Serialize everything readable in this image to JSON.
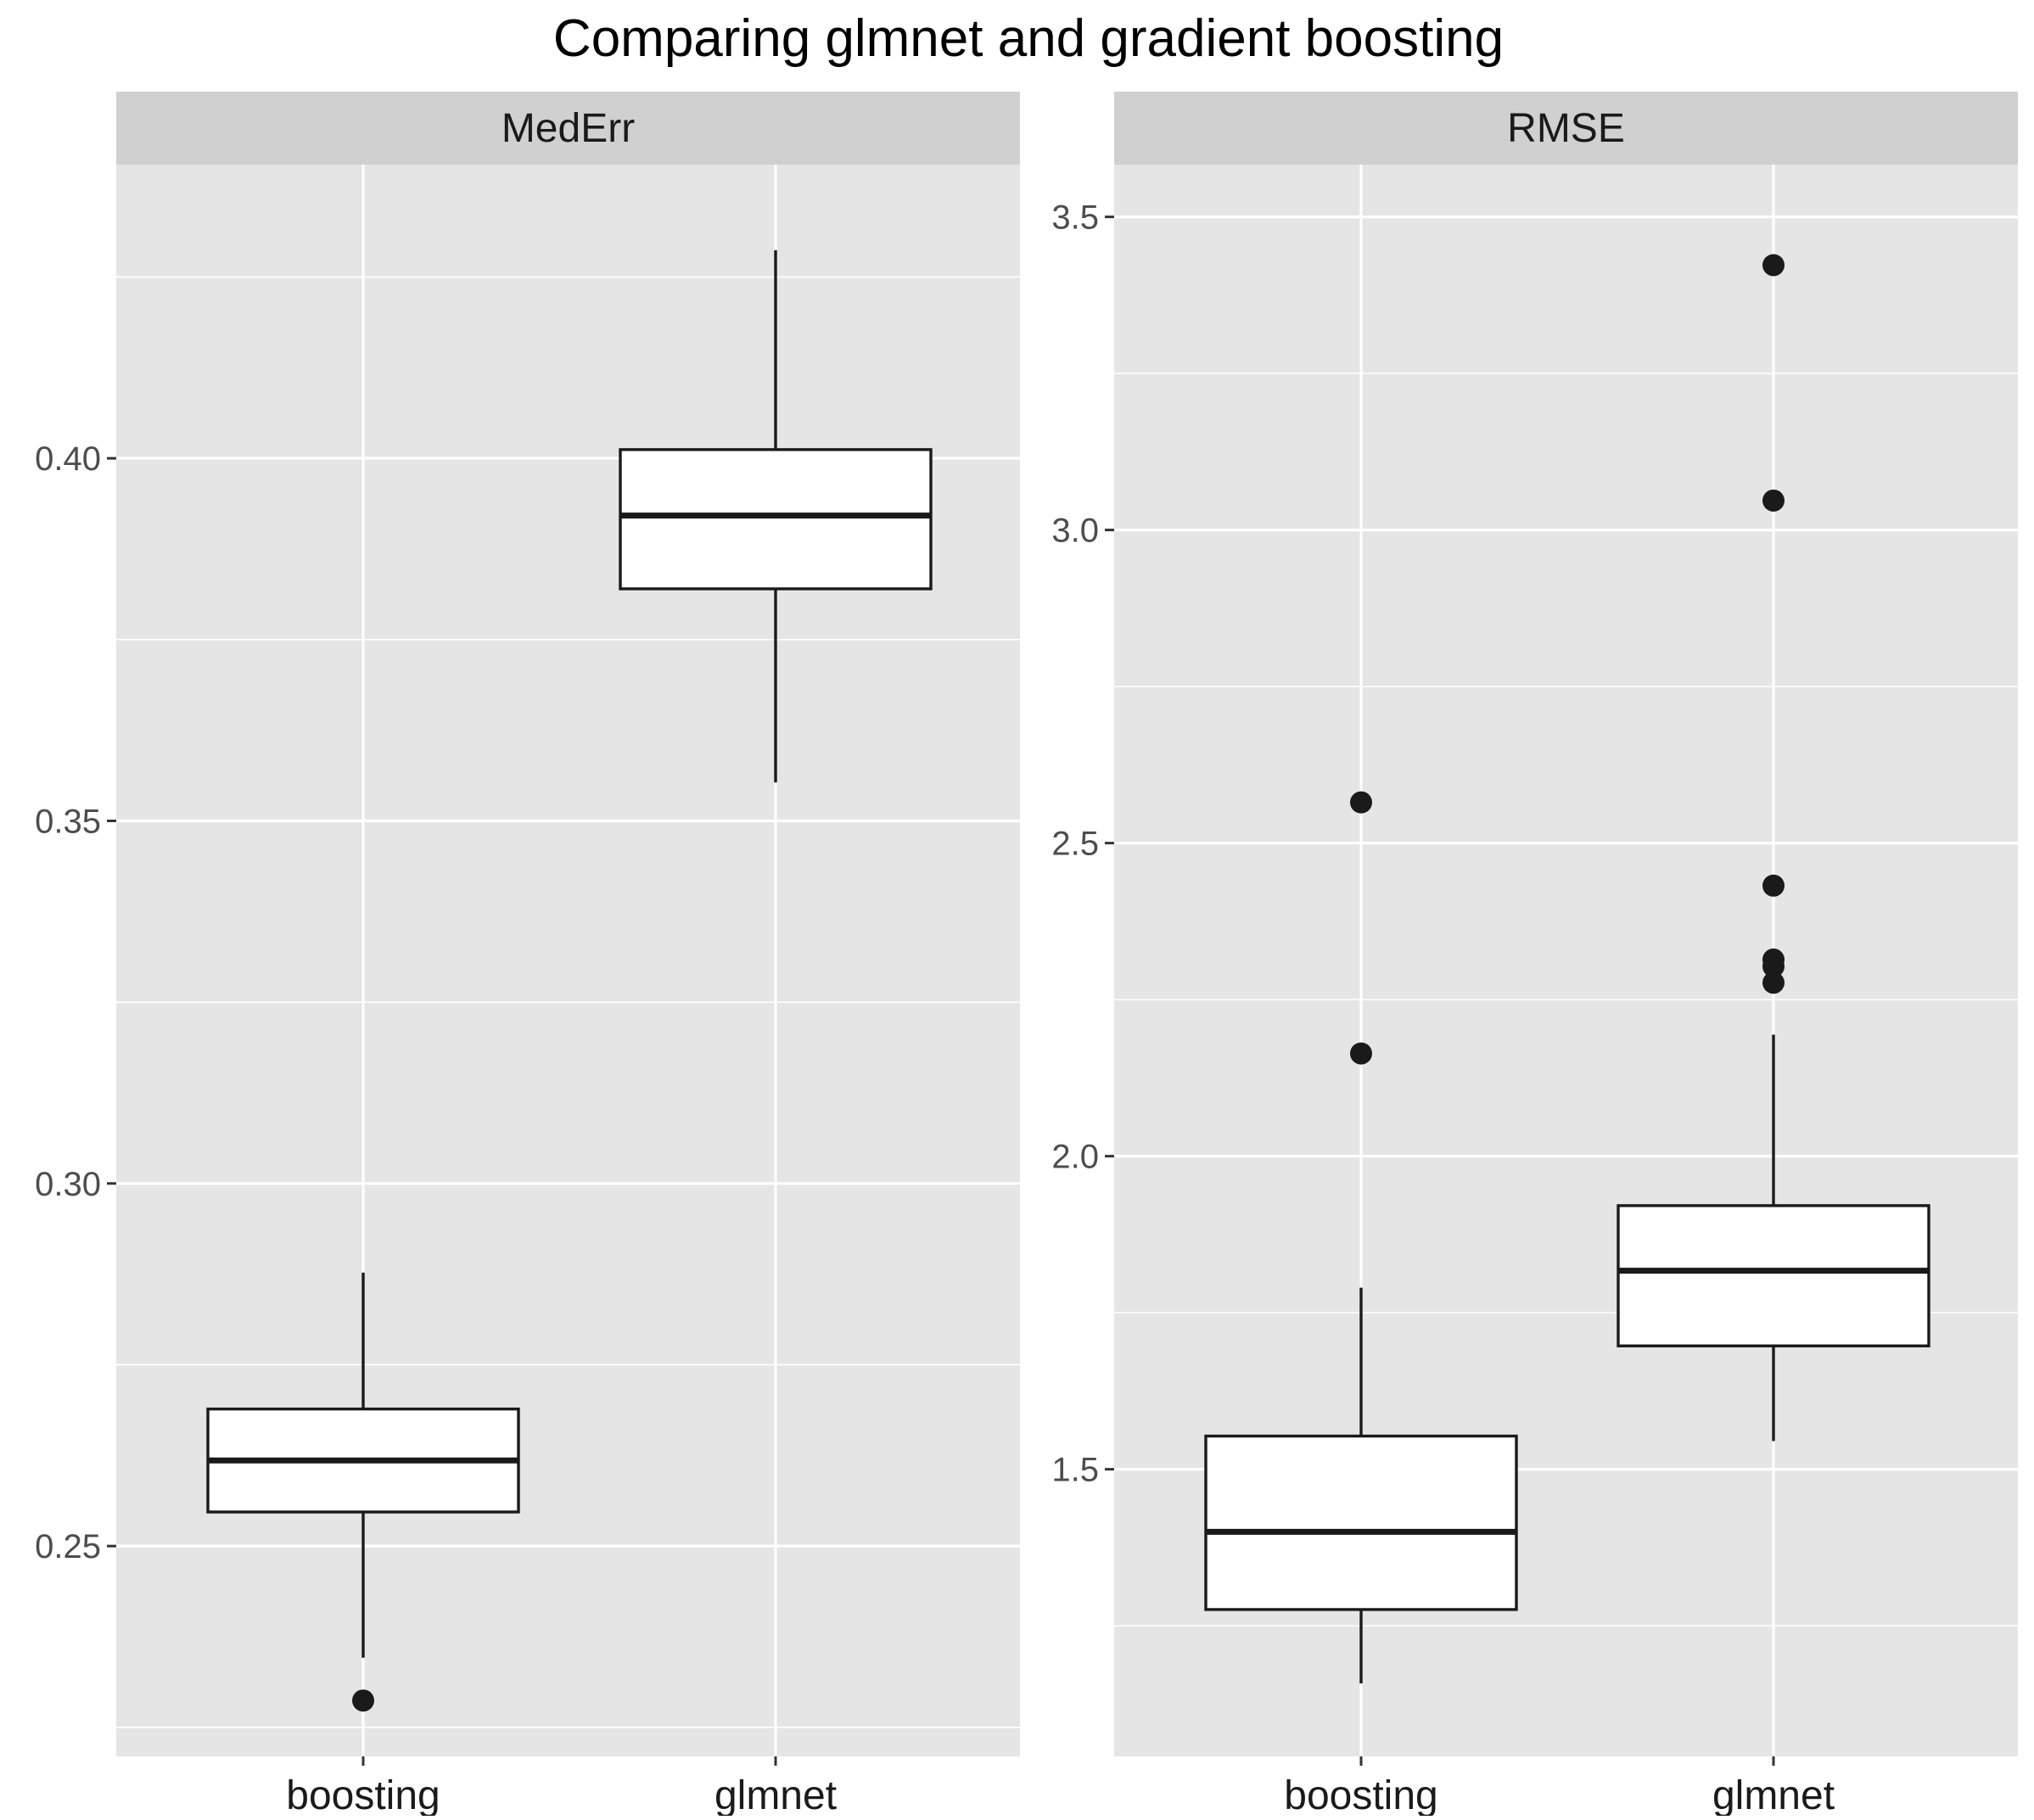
{
  "title": "Comparing glmnet and gradient boosting",
  "colors": {
    "panel_background": "#e5e5e5",
    "strip_background": "#d0d0d0",
    "grid": "#ffffff",
    "box_fill": "#ffffff",
    "box_line": "#1a1a1a",
    "outlier": "#1a1a1a",
    "tick_text": "#4d4d4d"
  },
  "chart_data": [
    {
      "type": "boxplot",
      "panel": "MedErr",
      "categories": [
        "boosting",
        "glmnet"
      ],
      "ylim": [
        0.221,
        0.4405
      ],
      "y_ticks": [
        0.25,
        0.3,
        0.35,
        0.4
      ],
      "y_tick_labels": [
        "0.25",
        "0.30",
        "0.35",
        "0.40"
      ],
      "grid": true,
      "boxes": [
        {
          "category": "boosting",
          "whisker_low": 0.2346,
          "q1": 0.2547,
          "median": 0.2618,
          "q3": 0.2689,
          "whisker_high": 0.2877,
          "outliers": [
            0.2287
          ]
        },
        {
          "category": "glmnet",
          "whisker_low": 0.3553,
          "q1": 0.382,
          "median": 0.3921,
          "q3": 0.4012,
          "whisker_high": 0.4287,
          "outliers": []
        }
      ]
    },
    {
      "type": "boxplot",
      "panel": "RMSE",
      "categories": [
        "boosting",
        "glmnet"
      ],
      "ylim": [
        1.0415,
        3.5835
      ],
      "y_ticks": [
        1.5,
        2.0,
        2.5,
        3.0,
        3.5
      ],
      "y_tick_labels": [
        "1.5",
        "2.0",
        "2.5",
        "3.0",
        "3.5"
      ],
      "grid": true,
      "boxes": [
        {
          "category": "boosting",
          "whisker_low": 1.158,
          "q1": 1.276,
          "median": 1.4,
          "q3": 1.553,
          "whisker_high": 1.79,
          "outliers": [
            2.164,
            2.565
          ]
        },
        {
          "category": "glmnet",
          "whisker_low": 1.545,
          "q1": 1.697,
          "median": 1.817,
          "q3": 1.921,
          "whisker_high": 2.194,
          "outliers": [
            2.277,
            2.303,
            2.314,
            2.432,
            3.047,
            3.423
          ]
        }
      ]
    }
  ]
}
